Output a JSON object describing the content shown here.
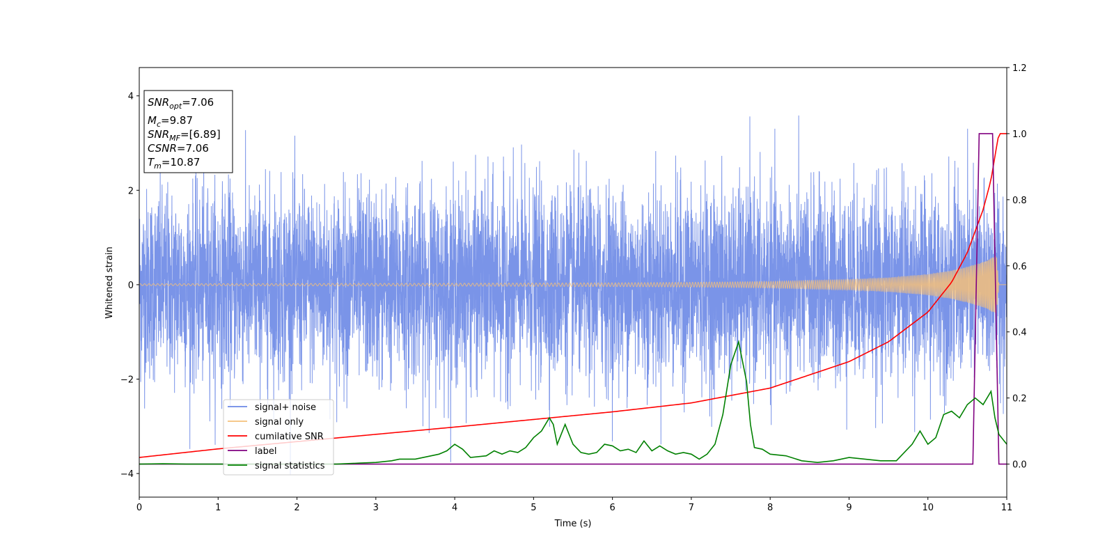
{
  "chart_data": {
    "type": "line",
    "xlabel": "Time (s)",
    "ylabel": "Whitened strain",
    "xlim": [
      0,
      11
    ],
    "ylim_left": [
      -4.5,
      4.6
    ],
    "ylim_right": [
      -0.1,
      1.2
    ],
    "x_ticks": [
      0,
      1,
      2,
      3,
      4,
      5,
      6,
      7,
      8,
      9,
      10,
      11
    ],
    "y_ticks_left": [
      -4,
      -2,
      0,
      2,
      4
    ],
    "y_ticks_right": [
      0.0,
      0.2,
      0.4,
      0.6,
      0.8,
      1.0,
      1.2
    ],
    "y_tick_labels_left": [
      "−4",
      "−2",
      "0",
      "2",
      "4"
    ],
    "y_tick_labels_right": [
      "0.0",
      "0.2",
      "0.4",
      "0.6",
      "0.8",
      "1.0",
      "1.2"
    ],
    "x_tick_labels": [
      "0",
      "1",
      "2",
      "3",
      "4",
      "5",
      "6",
      "7",
      "8",
      "9",
      "10",
      "11"
    ],
    "legend_location": "lower-left",
    "grid": false,
    "series": [
      {
        "name": "signal+ noise",
        "color": "#6b88e6",
        "axis": "left",
        "description_values": "noisy whitened strain, approx. ±2.5 band with spikes to ±4",
        "std": 1.0
      },
      {
        "name": "signal only",
        "color": "#f5c07a",
        "axis": "left",
        "amplitude": [
          [
            0,
            0.02
          ],
          [
            2,
            0.025
          ],
          [
            4,
            0.03
          ],
          [
            6,
            0.04
          ],
          [
            7,
            0.05
          ],
          [
            8,
            0.07
          ],
          [
            9,
            0.11
          ],
          [
            9.5,
            0.15
          ],
          [
            10,
            0.22
          ],
          [
            10.3,
            0.3
          ],
          [
            10.5,
            0.38
          ],
          [
            10.7,
            0.48
          ],
          [
            10.87,
            0.62
          ],
          [
            10.9,
            0.0
          ]
        ]
      },
      {
        "name": "cumilative SNR",
        "color": "#ff0000",
        "axis": "right",
        "x": [
          0,
          1,
          2,
          3,
          4,
          5,
          6,
          7,
          8,
          9,
          9.5,
          10,
          10.3,
          10.5,
          10.7,
          10.8,
          10.87,
          10.9,
          11
        ],
        "y": [
          0.02,
          0.046,
          0.068,
          0.09,
          0.112,
          0.135,
          0.158,
          0.185,
          0.23,
          0.31,
          0.37,
          0.46,
          0.55,
          0.64,
          0.77,
          0.86,
          0.96,
          1.0,
          1.0
        ]
      },
      {
        "name": "label",
        "color": "#800080",
        "axis": "right",
        "x": [
          0,
          10.57,
          10.65,
          10.82,
          10.9,
          11
        ],
        "y": [
          0,
          0,
          1,
          1,
          0,
          0
        ]
      },
      {
        "name": "signal statistics",
        "color": "#008000",
        "axis": "right",
        "x": [
          0,
          0.3,
          0.6,
          1,
          1.5,
          2,
          2.5,
          2.8,
          3,
          3.2,
          3.3,
          3.5,
          3.6,
          3.8,
          3.9,
          4,
          4.1,
          4.2,
          4.4,
          4.5,
          4.6,
          4.7,
          4.8,
          4.9,
          5,
          5.1,
          5.2,
          5.25,
          5.3,
          5.4,
          5.5,
          5.6,
          5.7,
          5.8,
          5.9,
          6,
          6.1,
          6.2,
          6.3,
          6.4,
          6.5,
          6.6,
          6.7,
          6.8,
          6.9,
          7,
          7.1,
          7.2,
          7.3,
          7.4,
          7.5,
          7.6,
          7.7,
          7.75,
          7.8,
          7.9,
          8,
          8.2,
          8.4,
          8.6,
          8.8,
          9,
          9.2,
          9.4,
          9.6,
          9.8,
          9.9,
          10,
          10.1,
          10.2,
          10.3,
          10.4,
          10.5,
          10.6,
          10.7,
          10.8,
          10.85,
          10.9,
          11
        ],
        "y": [
          0.0,
          0.001,
          0.0,
          0.0,
          0.0,
          0.0,
          0.0,
          0.003,
          0.005,
          0.01,
          0.015,
          0.015,
          0.02,
          0.03,
          0.04,
          0.06,
          0.045,
          0.02,
          0.025,
          0.04,
          0.03,
          0.04,
          0.035,
          0.05,
          0.08,
          0.1,
          0.14,
          0.12,
          0.06,
          0.12,
          0.06,
          0.035,
          0.03,
          0.035,
          0.06,
          0.055,
          0.04,
          0.045,
          0.035,
          0.07,
          0.04,
          0.055,
          0.04,
          0.03,
          0.035,
          0.03,
          0.015,
          0.03,
          0.06,
          0.15,
          0.3,
          0.37,
          0.25,
          0.12,
          0.05,
          0.045,
          0.03,
          0.025,
          0.01,
          0.005,
          0.01,
          0.02,
          0.015,
          0.01,
          0.01,
          0.06,
          0.1,
          0.06,
          0.08,
          0.15,
          0.16,
          0.14,
          0.18,
          0.2,
          0.18,
          0.22,
          0.14,
          0.09,
          0.06
        ]
      }
    ]
  },
  "info_box": {
    "snr_opt_main": "SNR",
    "snr_opt_sub": "opt",
    "snr_opt_value": "=7.06",
    "mc_main": "M",
    "mc_sub": "c",
    "mc_value": "=9.87",
    "snr_mf_main": "SNR",
    "snr_mf_sub": "MF",
    "snr_mf_value": "=[6.89]",
    "csnr_main": "CSNR",
    "csnr_value": "=7.06",
    "tm_main": "T",
    "tm_sub": "m",
    "tm_value": "=10.87"
  }
}
